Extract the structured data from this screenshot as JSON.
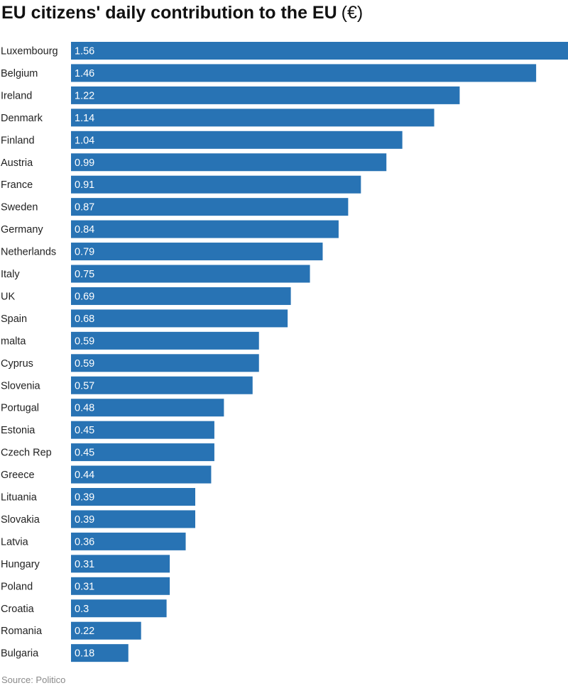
{
  "title": "EU citizens' daily contribution to the EU",
  "title_unit": "(€)",
  "source": "Source: Politico",
  "colors": {
    "bar": "#2873b4",
    "bar_label": "#ffffff",
    "category_label": "#222222"
  },
  "chart_data": {
    "type": "bar",
    "orientation": "horizontal",
    "title": "EU citizens' daily contribution to the EU (€)",
    "categories": [
      "Luxembourg",
      "Belgium",
      "Ireland",
      "Denmark",
      "Finland",
      "Austria",
      "France",
      "Sweden",
      "Germany",
      "Netherlands",
      "Italy",
      "UK",
      "Spain",
      "malta",
      "Cyprus",
      "Slovenia",
      "Portugal",
      "Estonia",
      "Czech Rep",
      "Greece",
      "Lituania",
      "Slovakia",
      "Latvia",
      "Hungary",
      "Poland",
      "Croatia",
      "Romania",
      "Bulgaria"
    ],
    "values": [
      1.56,
      1.46,
      1.22,
      1.14,
      1.04,
      0.99,
      0.91,
      0.87,
      0.84,
      0.79,
      0.75,
      0.69,
      0.68,
      0.59,
      0.59,
      0.57,
      0.48,
      0.45,
      0.45,
      0.44,
      0.39,
      0.39,
      0.36,
      0.31,
      0.31,
      0.3,
      0.22,
      0.18
    ],
    "value_labels": [
      "1.56",
      "1.46",
      "1.22",
      "1.14",
      "1.04",
      "0.99",
      "0.91",
      "0.87",
      "0.84",
      "0.79",
      "0.75",
      "0.69",
      "0.68",
      "0.59",
      "0.59",
      "0.57",
      "0.48",
      "0.45",
      "0.45",
      "0.44",
      "0.39",
      "0.39",
      "0.36",
      "0.31",
      "0.31",
      "0.3",
      "0.22",
      "0.18"
    ],
    "xlim": [
      0,
      1.56
    ],
    "grid": false,
    "legend": "none"
  }
}
